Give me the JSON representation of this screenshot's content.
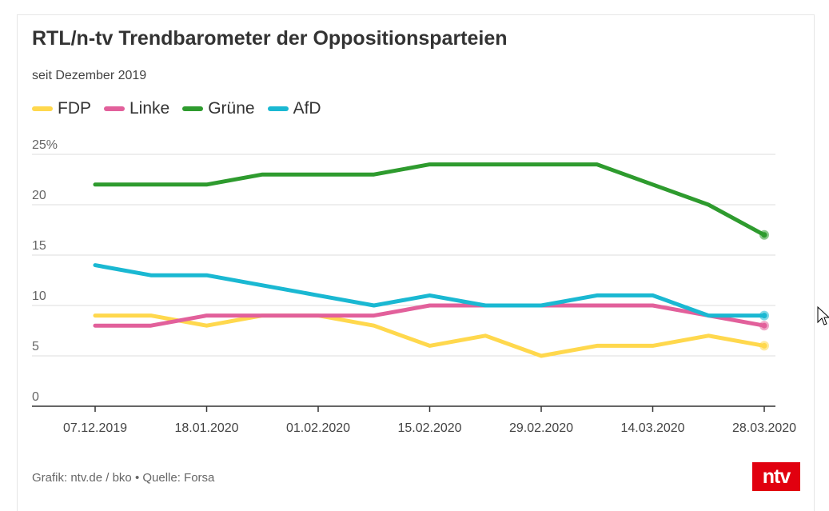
{
  "title": "RTL/n-tv Trendbarometer der Oppositionsparteien",
  "subtitle": "seit Dezember 2019",
  "source": "Grafik: ntv.de / bko • Quelle: Forsa",
  "logo_text": "ntv",
  "colors": {
    "logo": "#e1000f"
  },
  "chart_data": {
    "type": "line",
    "x": [
      "07.12.2019",
      "14.12.2019",
      "18.01.2020",
      "25.01.2020",
      "01.02.2020",
      "08.02.2020",
      "15.02.2020",
      "22.02.2020",
      "29.02.2020",
      "07.03.2020",
      "14.03.2020",
      "21.03.2020",
      "28.03.2020"
    ],
    "x_tick_labels": [
      "07.12.2019",
      "18.01.2020",
      "01.02.2020",
      "15.02.2020",
      "29.02.2020",
      "14.03.2020",
      "28.03.2020"
    ],
    "y_ticks": [
      0,
      5,
      10,
      15,
      20,
      25
    ],
    "y_tick_labels": [
      "0",
      "5",
      "10",
      "15",
      "20",
      "25%"
    ],
    "ylim": [
      0,
      25
    ],
    "grid": true,
    "legend_placement": "top-left",
    "series": [
      {
        "name": "FDP",
        "color": "#ffd84d",
        "values": [
          9,
          9,
          8,
          9,
          9,
          8,
          6,
          7,
          5,
          6,
          6,
          7,
          6
        ]
      },
      {
        "name": "Linke",
        "color": "#e2609b",
        "values": [
          8,
          8,
          9,
          9,
          9,
          9,
          10,
          10,
          10,
          10,
          10,
          9,
          8
        ]
      },
      {
        "name": "Grüne",
        "color": "#2e9b2e",
        "values": [
          22,
          22,
          22,
          23,
          23,
          23,
          24,
          24,
          24,
          24,
          22,
          20,
          17
        ]
      },
      {
        "name": "AfD",
        "color": "#1ab8d2",
        "values": [
          14,
          13,
          13,
          12,
          11,
          10,
          11,
          10,
          10,
          11,
          11,
          9,
          9
        ]
      }
    ]
  }
}
